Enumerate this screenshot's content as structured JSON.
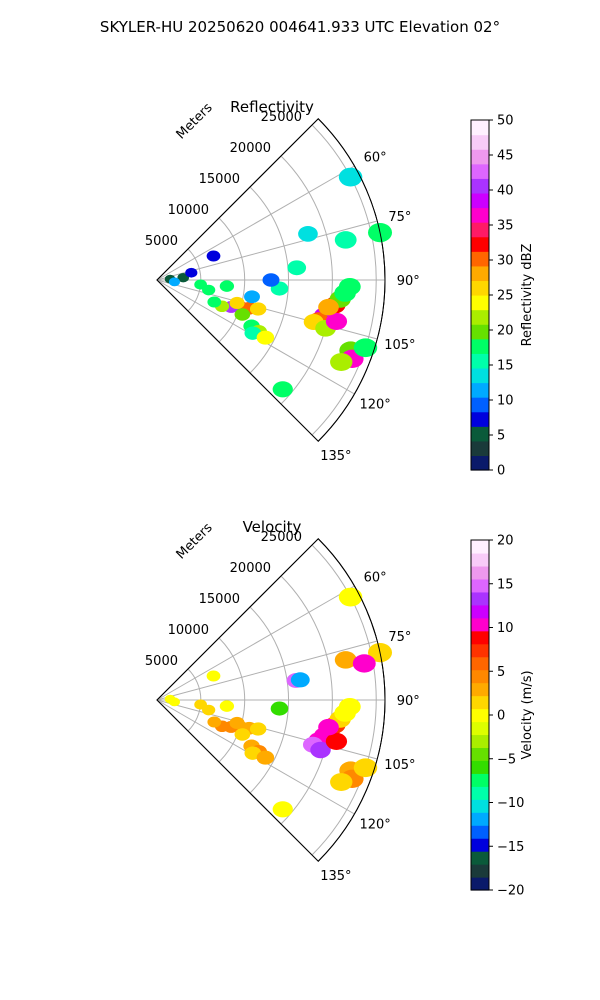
{
  "figure": {
    "suptitle": "SKYLER-HU  20250620  004641.933 UTC Elevation 02°"
  },
  "chart_data": [
    {
      "type": "heatmap",
      "title": "Reflectivity",
      "radial_label": "Meters",
      "r_ticks": [
        "5000",
        "10000",
        "15000",
        "20000",
        "25000"
      ],
      "r_tick_values": [
        5000,
        10000,
        15000,
        20000,
        25000
      ],
      "r_max": 26000,
      "theta_ticks": [
        "60°",
        "75°",
        "90°",
        "105°",
        "120°",
        "135°"
      ],
      "theta_tick_values": [
        60,
        75,
        90,
        105,
        120,
        135
      ],
      "theta_range_deg": [
        45,
        135
      ],
      "colorbar": {
        "label": "Reflectivity dBZ",
        "min": 0,
        "max": 50,
        "ticks": [
          "0",
          "5",
          "10",
          "15",
          "20",
          "25",
          "30",
          "35",
          "40",
          "45",
          "50"
        ],
        "tick_values": [
          0,
          5,
          10,
          15,
          20,
          25,
          30,
          35,
          40,
          45,
          50
        ],
        "colors": [
          "#0a1a6a",
          "#1a3a3a",
          "#0a5a3a",
          "#0000dd",
          "#0060ff",
          "#00aaff",
          "#00e0e0",
          "#00ffaa",
          "#00ff66",
          "#66e000",
          "#aaee00",
          "#ffff00",
          "#ffd700",
          "#ffaa00",
          "#ff6600",
          "#ff0000",
          "#ff1a66",
          "#ff00cc",
          "#cc00ff",
          "#aa33ff",
          "#dd66ff",
          "#ee99ee",
          "#f8ccf8",
          "#fff0ff"
        ]
      },
      "cells": [
        {
          "r": 20000,
          "t": 100,
          "v": 25
        },
        {
          "r": 19500,
          "t": 102,
          "v": 38
        },
        {
          "r": 20500,
          "t": 98,
          "v": 32
        },
        {
          "r": 21000,
          "t": 96,
          "v": 20
        },
        {
          "r": 21500,
          "t": 94,
          "v": 18
        },
        {
          "r": 22000,
          "t": 92,
          "v": 17
        },
        {
          "r": 19000,
          "t": 104,
          "v": 30
        },
        {
          "r": 18500,
          "t": 105,
          "v": 26
        },
        {
          "r": 20000,
          "t": 106,
          "v": 22
        },
        {
          "r": 21000,
          "t": 103,
          "v": 36
        },
        {
          "r": 19800,
          "t": 99,
          "v": 28
        },
        {
          "r": 10000,
          "t": 108,
          "v": 34
        },
        {
          "r": 9000,
          "t": 110,
          "v": 40
        },
        {
          "r": 11000,
          "t": 107,
          "v": 30
        },
        {
          "r": 12000,
          "t": 106,
          "v": 25
        },
        {
          "r": 8000,
          "t": 112,
          "v": 22
        },
        {
          "r": 7000,
          "t": 111,
          "v": 18
        },
        {
          "r": 10500,
          "t": 112,
          "v": 20
        },
        {
          "r": 9500,
          "t": 106,
          "v": 27
        },
        {
          "r": 12000,
          "t": 116,
          "v": 18
        },
        {
          "r": 13000,
          "t": 117,
          "v": 22
        },
        {
          "r": 12500,
          "t": 119,
          "v": 16
        },
        {
          "r": 14000,
          "t": 118,
          "v": 24
        },
        {
          "r": 23500,
          "t": 110,
          "v": 20
        },
        {
          "r": 24000,
          "t": 112,
          "v": 36
        },
        {
          "r": 25000,
          "t": 108,
          "v": 18
        },
        {
          "r": 23000,
          "t": 114,
          "v": 22
        },
        {
          "r": 19000,
          "t": 131,
          "v": 18
        },
        {
          "r": 14000,
          "t": 94,
          "v": 15
        },
        {
          "r": 13000,
          "t": 90,
          "v": 10
        },
        {
          "r": 8000,
          "t": 95,
          "v": 18
        },
        {
          "r": 5000,
          "t": 96,
          "v": 17
        },
        {
          "r": 3000,
          "t": 85,
          "v": 6
        },
        {
          "r": 4000,
          "t": 78,
          "v": 8
        },
        {
          "r": 1500,
          "t": 86,
          "v": 5
        },
        {
          "r": 2000,
          "t": 96,
          "v": 12
        },
        {
          "r": 16000,
          "t": 85,
          "v": 15
        },
        {
          "r": 22000,
          "t": 78,
          "v": 16
        },
        {
          "r": 25000,
          "t": 62,
          "v": 14
        },
        {
          "r": 26000,
          "t": 78,
          "v": 18
        },
        {
          "r": 18000,
          "t": 73,
          "v": 14
        },
        {
          "r": 11000,
          "t": 100,
          "v": 12
        },
        {
          "r": 6000,
          "t": 101,
          "v": 18
        },
        {
          "r": 7000,
          "t": 67,
          "v": 8
        }
      ]
    },
    {
      "type": "heatmap",
      "title": "Velocity",
      "radial_label": "Meters",
      "r_ticks": [
        "5000",
        "10000",
        "15000",
        "20000",
        "25000"
      ],
      "r_tick_values": [
        5000,
        10000,
        15000,
        20000,
        25000
      ],
      "r_max": 26000,
      "theta_ticks": [
        "60°",
        "75°",
        "90°",
        "105°",
        "120°",
        "135°"
      ],
      "theta_tick_values": [
        60,
        75,
        90,
        105,
        120,
        135
      ],
      "theta_range_deg": [
        45,
        135
      ],
      "colorbar": {
        "label": "Velocity (m/s)",
        "min": -20,
        "max": 20,
        "ticks": [
          "−20",
          "−15",
          "−10",
          "−5",
          "0",
          "5",
          "10",
          "15",
          "20"
        ],
        "tick_values": [
          -20,
          -15,
          -10,
          -5,
          0,
          5,
          10,
          15,
          20
        ],
        "colors": [
          "#0a1a6a",
          "#1a3a3a",
          "#0a5a3a",
          "#0000dd",
          "#0060ff",
          "#00aaff",
          "#00e0e0",
          "#00ffaa",
          "#00ff66",
          "#33dd00",
          "#66e000",
          "#aaee00",
          "#ddff00",
          "#ffff00",
          "#ffd700",
          "#ffaa00",
          "#ff8800",
          "#ff6600",
          "#ff3300",
          "#ff0000",
          "#ff00cc",
          "#cc00ff",
          "#aa33ff",
          "#dd66ff",
          "#ee99ee",
          "#f8ccf8",
          "#fff0ff"
        ]
      },
      "cells": [
        {
          "r": 20000,
          "t": 100,
          "v": 9
        },
        {
          "r": 19500,
          "t": 102,
          "v": 10
        },
        {
          "r": 20500,
          "t": 98,
          "v": 8
        },
        {
          "r": 21000,
          "t": 96,
          "v": 2
        },
        {
          "r": 21500,
          "t": 94,
          "v": 0
        },
        {
          "r": 22000,
          "t": 92,
          "v": 0
        },
        {
          "r": 19000,
          "t": 104,
          "v": 11
        },
        {
          "r": 18500,
          "t": 106,
          "v": 15
        },
        {
          "r": 19500,
          "t": 107,
          "v": 13
        },
        {
          "r": 21000,
          "t": 103,
          "v": 9
        },
        {
          "r": 19800,
          "t": 99,
          "v": 10
        },
        {
          "r": 10000,
          "t": 108,
          "v": 3
        },
        {
          "r": 9000,
          "t": 110,
          "v": 4
        },
        {
          "r": 11000,
          "t": 107,
          "v": 3
        },
        {
          "r": 12000,
          "t": 106,
          "v": 2
        },
        {
          "r": 8000,
          "t": 112,
          "v": 4
        },
        {
          "r": 7000,
          "t": 111,
          "v": 3
        },
        {
          "r": 10500,
          "t": 112,
          "v": 2
        },
        {
          "r": 9500,
          "t": 106,
          "v": 3
        },
        {
          "r": 12000,
          "t": 116,
          "v": 3
        },
        {
          "r": 13000,
          "t": 117,
          "v": 4
        },
        {
          "r": 12500,
          "t": 119,
          "v": 2
        },
        {
          "r": 14000,
          "t": 118,
          "v": 3
        },
        {
          "r": 23500,
          "t": 110,
          "v": 3
        },
        {
          "r": 24000,
          "t": 112,
          "v": 4
        },
        {
          "r": 25000,
          "t": 108,
          "v": 2
        },
        {
          "r": 23000,
          "t": 114,
          "v": 1
        },
        {
          "r": 19000,
          "t": 131,
          "v": 0
        },
        {
          "r": 14000,
          "t": 94,
          "v": -6
        },
        {
          "r": 8000,
          "t": 95,
          "v": 0
        },
        {
          "r": 5000,
          "t": 96,
          "v": 1
        },
        {
          "r": 2000,
          "t": 96,
          "v": 0
        },
        {
          "r": 1500,
          "t": 86,
          "v": 0
        },
        {
          "r": 16000,
          "t": 82,
          "v": 15
        },
        {
          "r": 16500,
          "t": 82,
          "v": -12
        },
        {
          "r": 22000,
          "t": 78,
          "v": 3
        },
        {
          "r": 25000,
          "t": 62,
          "v": 0
        },
        {
          "r": 26000,
          "t": 78,
          "v": 1
        },
        {
          "r": 6000,
          "t": 101,
          "v": 1
        },
        {
          "r": 7000,
          "t": 67,
          "v": 0
        },
        {
          "r": 24000,
          "t": 80,
          "v": 10
        }
      ]
    }
  ]
}
